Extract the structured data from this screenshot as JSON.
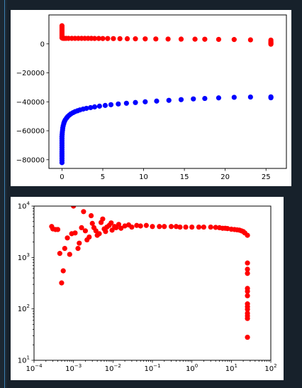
{
  "chart_data": [
    {
      "type": "scatter",
      "title": "",
      "xlabel": "",
      "ylabel": "",
      "xlim": [
        -1.6,
        27.5
      ],
      "ylim": [
        -86000,
        20000
      ],
      "x_ticks": [
        0,
        5,
        10,
        15,
        20,
        25
      ],
      "y_ticks": [
        -80000,
        -60000,
        -40000,
        -20000,
        0
      ],
      "x_tick_labels": [
        "0",
        "5",
        "10",
        "15",
        "20",
        "25"
      ],
      "y_tick_labels": [
        "−80000",
        "−60000",
        "−40000",
        "−20000",
        "0"
      ],
      "grid": false,
      "series": [
        {
          "color": "#ff0000",
          "points": [
            [
              0,
              12500
            ],
            [
              0,
              11500
            ],
            [
              0,
              10500
            ],
            [
              0,
              9500
            ],
            [
              0,
              8500
            ],
            [
              0,
              7500
            ],
            [
              0,
              6500
            ],
            [
              0,
              5500
            ],
            [
              0,
              4200
            ],
            [
              0.05,
              4000
            ],
            [
              0.1,
              3900
            ],
            [
              0.2,
              3850
            ],
            [
              0.3,
              3800
            ],
            [
              0.5,
              3800
            ],
            [
              0.8,
              3800
            ],
            [
              1.2,
              3800
            ],
            [
              1.6,
              3800
            ],
            [
              2.0,
              3800
            ],
            [
              2.4,
              3800
            ],
            [
              2.8,
              3800
            ],
            [
              3.2,
              3800
            ],
            [
              3.6,
              3800
            ],
            [
              4.0,
              3750
            ],
            [
              4.5,
              3750
            ],
            [
              5.0,
              3700
            ],
            [
              5.6,
              3700
            ],
            [
              6.3,
              3650
            ],
            [
              7.1,
              3600
            ],
            [
              8.0,
              3550
            ],
            [
              9.0,
              3500
            ],
            [
              10.2,
              3450
            ],
            [
              11.5,
              3400
            ],
            [
              13.0,
              3350
            ],
            [
              14.6,
              3300
            ],
            [
              16.3,
              3250
            ],
            [
              17.5,
              3200
            ],
            [
              19.2,
              3100
            ],
            [
              21.1,
              3000
            ],
            [
              23.1,
              2800
            ],
            [
              25.6,
              2600
            ],
            [
              25.6,
              1500
            ],
            [
              25.6,
              800
            ],
            [
              25.6,
              200
            ],
            [
              25.6,
              -200
            ]
          ]
        },
        {
          "color": "#0000ff",
          "points": [
            [
              0,
              -82000
            ],
            [
              0,
              -80500
            ],
            [
              0,
              -79000
            ],
            [
              0,
              -77500
            ],
            [
              0,
              -76000
            ],
            [
              0,
              -74500
            ],
            [
              0,
              -73000
            ],
            [
              0,
              -71500
            ],
            [
              0,
              -70000
            ],
            [
              0,
              -68500
            ],
            [
              0,
              -67000
            ],
            [
              0,
              -65500
            ],
            [
              0,
              -64000
            ],
            [
              0.02,
              -62500
            ],
            [
              0.04,
              -61000
            ],
            [
              0.07,
              -59500
            ],
            [
              0.1,
              -58000
            ],
            [
              0.15,
              -56500
            ],
            [
              0.22,
              -55000
            ],
            [
              0.3,
              -53700
            ],
            [
              0.4,
              -52500
            ],
            [
              0.55,
              -51300
            ],
            [
              0.7,
              -50200
            ],
            [
              0.9,
              -49200
            ],
            [
              1.1,
              -48300
            ],
            [
              1.35,
              -47500
            ],
            [
              1.6,
              -46800
            ],
            [
              1.9,
              -46200
            ],
            [
              2.2,
              -45600
            ],
            [
              2.6,
              -45000
            ],
            [
              3.0,
              -44500
            ],
            [
              3.5,
              -44000
            ],
            [
              4.0,
              -43500
            ],
            [
              4.6,
              -43000
            ],
            [
              5.3,
              -42500
            ],
            [
              6.0,
              -42000
            ],
            [
              6.9,
              -41500
            ],
            [
              7.9,
              -41000
            ],
            [
              9.0,
              -40500
            ],
            [
              10.2,
              -40000
            ],
            [
              11.6,
              -39500
            ],
            [
              13.1,
              -39000
            ],
            [
              14.6,
              -38500
            ],
            [
              16.1,
              -38000
            ],
            [
              17.5,
              -37700
            ],
            [
              19.2,
              -37300
            ],
            [
              21.1,
              -36900
            ],
            [
              23.1,
              -36700
            ],
            [
              25.6,
              -36600
            ],
            [
              25.6,
              -36900
            ],
            [
              25.6,
              -37200
            ]
          ]
        }
      ]
    },
    {
      "type": "scatter",
      "title": "",
      "xlabel": "",
      "ylabel": "",
      "xscale": "log",
      "yscale": "log",
      "xlim": [
        0.0001,
        100
      ],
      "ylim": [
        10,
        10000
      ],
      "x_ticks": [
        0.0001,
        0.001,
        0.01,
        0.1,
        1,
        10,
        100
      ],
      "y_ticks": [
        10,
        100,
        1000,
        10000
      ],
      "x_tick_labels": [
        [
          "10",
          "−4"
        ],
        [
          "10",
          "−3"
        ],
        [
          "10",
          "−2"
        ],
        [
          "10",
          "−1"
        ],
        [
          "10",
          "0"
        ],
        [
          "10",
          "1"
        ],
        [
          "10",
          "2"
        ]
      ],
      "y_tick_labels": [
        [
          "10",
          "1"
        ],
        [
          "10",
          "2"
        ],
        [
          "10",
          "3"
        ],
        [
          "10",
          "4"
        ]
      ],
      "grid": false,
      "series": [
        {
          "color": "#ff0000",
          "points": [
            [
              0.00028,
              4000
            ],
            [
              0.0003,
              3600
            ],
            [
              0.00035,
              3500
            ],
            [
              0.0004,
              3500
            ],
            [
              0.00045,
              1200
            ],
            [
              0.0005,
              320
            ],
            [
              0.00055,
              550
            ],
            [
              0.0006,
              1500
            ],
            [
              0.0007,
              2400
            ],
            [
              0.0008,
              1150
            ],
            [
              0.0009,
              2900
            ],
            [
              0.001,
              10000
            ],
            [
              0.0011,
              3000
            ],
            [
              0.0013,
              1500
            ],
            [
              0.0014,
              1900
            ],
            [
              0.0016,
              3800
            ],
            [
              0.0018,
              7800
            ],
            [
              0.002,
              3300
            ],
            [
              0.0022,
              2200
            ],
            [
              0.0025,
              2500
            ],
            [
              0.0028,
              6500
            ],
            [
              0.003,
              4600
            ],
            [
              0.0033,
              3800
            ],
            [
              0.0037,
              3300
            ],
            [
              0.004,
              2700
            ],
            [
              0.0045,
              2900
            ],
            [
              0.005,
              4800
            ],
            [
              0.0055,
              5600
            ],
            [
              0.006,
              3600
            ],
            [
              0.0065,
              3200
            ],
            [
              0.007,
              3900
            ],
            [
              0.008,
              4200
            ],
            [
              0.009,
              4700
            ],
            [
              0.0095,
              3400
            ],
            [
              0.011,
              4000
            ],
            [
              0.012,
              3800
            ],
            [
              0.014,
              4400
            ],
            [
              0.016,
              3700
            ],
            [
              0.02,
              4100
            ],
            [
              0.025,
              4300
            ],
            [
              0.03,
              3900
            ],
            [
              0.04,
              4200
            ],
            [
              0.05,
              4100
            ],
            [
              0.07,
              4200
            ],
            [
              0.1,
              4000
            ],
            [
              0.15,
              4000
            ],
            [
              0.2,
              4000
            ],
            [
              0.3,
              4000
            ],
            [
              0.4,
              4000
            ],
            [
              0.5,
              3900
            ],
            [
              0.7,
              3900
            ],
            [
              1,
              3900
            ],
            [
              1.5,
              3900
            ],
            [
              2,
              3900
            ],
            [
              3,
              3900
            ],
            [
              4,
              3850
            ],
            [
              5,
              3800
            ],
            [
              6,
              3700
            ],
            [
              7,
              3700
            ],
            [
              8,
              3650
            ],
            [
              10,
              3550
            ],
            [
              12,
              3500
            ],
            [
              14,
              3450
            ],
            [
              16,
              3400
            ],
            [
              18,
              3300
            ],
            [
              20,
              3200
            ],
            [
              22,
              3000
            ],
            [
              25.6,
              2700
            ],
            [
              25.6,
              780
            ],
            [
              25.6,
              590
            ],
            [
              25.6,
              490
            ],
            [
              25.6,
              250
            ],
            [
              25.6,
              220
            ],
            [
              25.6,
              180
            ],
            [
              25.6,
              125
            ],
            [
              25.6,
              110
            ],
            [
              25.6,
              98
            ],
            [
              25.6,
              82
            ],
            [
              25.6,
              73
            ],
            [
              25.6,
              65
            ],
            [
              25.6,
              28
            ]
          ]
        }
      ]
    }
  ]
}
